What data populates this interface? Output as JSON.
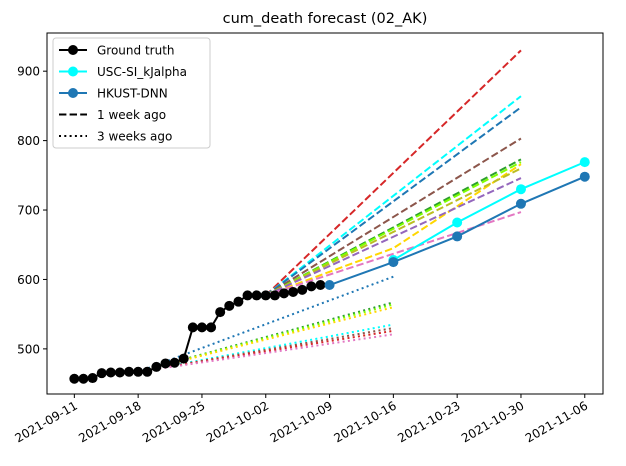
{
  "chart_data": {
    "type": "line",
    "title": "cum_death forecast (02_AK)",
    "xlabel": "",
    "ylabel": "",
    "x_axis": {
      "type": "date",
      "range": [
        "2021-09-08",
        "2021-11-08"
      ],
      "ticks": [
        "2021-09-11",
        "2021-09-18",
        "2021-09-25",
        "2021-10-02",
        "2021-10-09",
        "2021-10-16",
        "2021-10-23",
        "2021-10-30",
        "2021-11-06"
      ],
      "tick_label_rotation_deg": 30
    },
    "y_axis": {
      "range": [
        435,
        955
      ],
      "ticks": [
        500,
        600,
        700,
        800,
        900
      ]
    },
    "grid": false,
    "legend": {
      "placement": "top-left",
      "entries": [
        {
          "label": "Ground truth",
          "color": "#000000",
          "style": "solid",
          "marker": true
        },
        {
          "label": "USC-SI_kJalpha",
          "color": "#00ffff",
          "style": "solid",
          "marker": true
        },
        {
          "label": "HKUST-DNN",
          "color": "#1f77b4",
          "style": "solid",
          "marker": true
        },
        {
          "label": "1 week ago",
          "color": "#000000",
          "style": "dashed",
          "marker": false
        },
        {
          "label": "3 weeks ago",
          "color": "#000000",
          "style": "dotted",
          "marker": false
        }
      ]
    },
    "ground_truth": {
      "name": "Ground truth",
      "color": "#000000",
      "points": [
        [
          "2021-09-11",
          457
        ],
        [
          "2021-09-12",
          457
        ],
        [
          "2021-09-13",
          458
        ],
        [
          "2021-09-14",
          465
        ],
        [
          "2021-09-15",
          466
        ],
        [
          "2021-09-16",
          466
        ],
        [
          "2021-09-17",
          467
        ],
        [
          "2021-09-18",
          467
        ],
        [
          "2021-09-19",
          467
        ],
        [
          "2021-09-20",
          474
        ],
        [
          "2021-09-21",
          479
        ],
        [
          "2021-09-22",
          480
        ],
        [
          "2021-09-23",
          486
        ],
        [
          "2021-09-24",
          531
        ],
        [
          "2021-09-25",
          531
        ],
        [
          "2021-09-26",
          531
        ],
        [
          "2021-09-27",
          553
        ],
        [
          "2021-09-28",
          562
        ],
        [
          "2021-09-29",
          568
        ],
        [
          "2021-09-30",
          577
        ],
        [
          "2021-10-01",
          577
        ],
        [
          "2021-10-02",
          577
        ],
        [
          "2021-10-03",
          577
        ],
        [
          "2021-10-04",
          580
        ],
        [
          "2021-10-05",
          582
        ],
        [
          "2021-10-06",
          585
        ],
        [
          "2021-10-07",
          590
        ],
        [
          "2021-10-08",
          592
        ]
      ]
    },
    "series": [
      {
        "name": "USC-SI_kJalpha",
        "color": "#00ffff",
        "points": [
          [
            "2021-10-16",
            628
          ],
          [
            "2021-10-23",
            682
          ],
          [
            "2021-10-30",
            730
          ],
          [
            "2021-11-06",
            769
          ]
        ]
      },
      {
        "name": "HKUST-DNN",
        "color": "#1f77b4",
        "points": [
          [
            "2021-10-09",
            592
          ],
          [
            "2021-10-16",
            625
          ],
          [
            "2021-10-23",
            662
          ],
          [
            "2021-10-30",
            709
          ],
          [
            "2021-11-06",
            748
          ]
        ]
      }
    ],
    "forecasts_1_week_ago": [
      {
        "color": "#d62728",
        "points": [
          [
            "2021-10-02",
            577
          ],
          [
            "2021-10-30",
            930
          ]
        ]
      },
      {
        "color": "#00ffff",
        "points": [
          [
            "2021-10-02",
            577
          ],
          [
            "2021-10-30",
            864
          ]
        ]
      },
      {
        "color": "#1f77b4",
        "points": [
          [
            "2021-10-02",
            577
          ],
          [
            "2021-10-30",
            848
          ]
        ]
      },
      {
        "color": "#8c564b",
        "points": [
          [
            "2021-10-02",
            577
          ],
          [
            "2021-10-30",
            803
          ]
        ]
      },
      {
        "color": "#2ca02c",
        "points": [
          [
            "2021-10-02",
            577
          ],
          [
            "2021-10-30",
            773
          ]
        ]
      },
      {
        "color": "#7fff00",
        "points": [
          [
            "2021-10-02",
            577
          ],
          [
            "2021-10-30",
            769
          ]
        ]
      },
      {
        "color": "#ffd700",
        "points": [
          [
            "2021-10-02",
            577
          ],
          [
            "2021-10-16",
            645
          ],
          [
            "2021-10-30",
            766
          ]
        ]
      },
      {
        "color": "#bcbd22",
        "points": [
          [
            "2021-10-02",
            577
          ],
          [
            "2021-10-30",
            760
          ]
        ]
      },
      {
        "color": "#9467bd",
        "points": [
          [
            "2021-10-02",
            577
          ],
          [
            "2021-10-30",
            746
          ]
        ]
      },
      {
        "color": "#e377c2",
        "points": [
          [
            "2021-10-02",
            577
          ],
          [
            "2021-10-30",
            697
          ]
        ]
      }
    ],
    "forecasts_3_weeks_ago": [
      {
        "color": "#1f77b4",
        "points": [
          [
            "2021-09-18",
            467
          ],
          [
            "2021-10-16",
            604
          ]
        ]
      },
      {
        "color": "#2ca02c",
        "points": [
          [
            "2021-09-18",
            467
          ],
          [
            "2021-10-16",
            567
          ]
        ]
      },
      {
        "color": "#7fff00",
        "points": [
          [
            "2021-09-18",
            467
          ],
          [
            "2021-10-16",
            564
          ]
        ]
      },
      {
        "color": "#ffd700",
        "points": [
          [
            "2021-09-18",
            467
          ],
          [
            "2021-10-16",
            560
          ]
        ]
      },
      {
        "color": "#00ffff",
        "points": [
          [
            "2021-09-18",
            467
          ],
          [
            "2021-10-16",
            535
          ]
        ]
      },
      {
        "color": "#8c564b",
        "points": [
          [
            "2021-09-18",
            467
          ],
          [
            "2021-10-16",
            530
          ]
        ]
      },
      {
        "color": "#d62728",
        "points": [
          [
            "2021-09-18",
            467
          ],
          [
            "2021-10-16",
            526
          ]
        ]
      },
      {
        "color": "#e377c2",
        "points": [
          [
            "2021-09-18",
            467
          ],
          [
            "2021-10-16",
            521
          ]
        ]
      }
    ]
  }
}
